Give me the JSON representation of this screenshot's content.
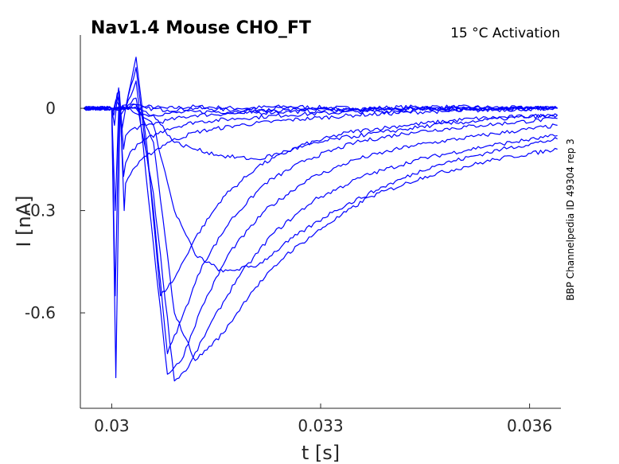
{
  "chart_data": {
    "type": "line",
    "title": "Nav1.4  Mouse  CHO_FT",
    "subtitle": "15 °C  Activation",
    "side_label": "BBP Channelpedia ID 49304 rep 3",
    "xlabel": "t [s]",
    "ylabel": "I [nA]",
    "xlim": [
      0.02955,
      0.03645
    ],
    "ylim": [
      -0.88,
      0.215
    ],
    "xticks": [
      0.03,
      0.033,
      0.036
    ],
    "xtick_labels": [
      "0.03",
      "0.033",
      "0.036"
    ],
    "yticks": [
      0,
      -0.3,
      -0.6
    ],
    "ytick_labels": [
      "0",
      "-0.3",
      "-0.6"
    ],
    "line_color": "#0000ff",
    "grid": false,
    "legend": "none",
    "series": [
      {
        "x": [
          0.0296,
          0.03,
          0.03002,
          0.03006,
          0.03012,
          0.0302,
          0.0303,
          0.0305,
          0.0308,
          0.0312,
          0.0318,
          0.0325,
          0.0335,
          0.0345,
          0.0364
        ],
        "y": [
          0,
          0,
          -0.01,
          0.025,
          0.0,
          0.01,
          0.0,
          0.005,
          0.0,
          0.005,
          0.0,
          0.005,
          0.0,
          0.005,
          0.0
        ]
      },
      {
        "x": [
          0.0296,
          0.03,
          0.03003,
          0.03008,
          0.03013,
          0.0302,
          0.0303,
          0.0305,
          0.0308,
          0.0312,
          0.0318,
          0.0325,
          0.0335,
          0.0345,
          0.0364
        ],
        "y": [
          0,
          0,
          -0.02,
          0.045,
          -0.02,
          0.0,
          0.01,
          0.0,
          -0.005,
          0.0,
          -0.005,
          0.0,
          -0.005,
          0.0,
          0.0
        ]
      },
      {
        "x": [
          0.0296,
          0.03,
          0.03004,
          0.0301,
          0.03015,
          0.0302,
          0.0303,
          0.0305,
          0.0308,
          0.0312,
          0.0318,
          0.0325,
          0.0335,
          0.0345,
          0.0364
        ],
        "y": [
          0,
          0,
          -0.05,
          0.06,
          -0.06,
          0.0,
          -0.01,
          -0.02,
          -0.015,
          -0.01,
          -0.01,
          -0.005,
          -0.005,
          0.0,
          0.0
        ]
      },
      {
        "x": [
          0.0296,
          0.03,
          0.03005,
          0.03011,
          0.03017,
          0.0302,
          0.0303,
          0.0305,
          0.0308,
          0.0312,
          0.0318,
          0.0325,
          0.0335,
          0.0345,
          0.0364
        ],
        "y": [
          0,
          0,
          -0.3,
          0.05,
          -0.12,
          -0.08,
          -0.06,
          -0.05,
          -0.035,
          -0.02,
          -0.015,
          -0.01,
          -0.005,
          0.0,
          0.0
        ]
      },
      {
        "x": [
          0.0296,
          0.03,
          0.03005,
          0.03011,
          0.03017,
          0.0302,
          0.0303,
          0.0305,
          0.0308,
          0.0312,
          0.0318,
          0.0325,
          0.0335,
          0.0345,
          0.0364
        ],
        "y": [
          0,
          0,
          -0.55,
          0.04,
          -0.2,
          -0.16,
          -0.12,
          -0.09,
          -0.06,
          -0.04,
          -0.03,
          -0.02,
          -0.01,
          -0.005,
          0.0
        ]
      },
      {
        "x": [
          0.0296,
          0.03,
          0.03006,
          0.03012,
          0.03018,
          0.0302,
          0.0303,
          0.0305,
          0.0308,
          0.0312,
          0.0318,
          0.0325,
          0.0335,
          0.0345,
          0.0364
        ],
        "y": [
          0,
          0,
          -0.79,
          0.02,
          -0.3,
          -0.22,
          -0.18,
          -0.14,
          -0.1,
          -0.07,
          -0.05,
          -0.035,
          -0.02,
          -0.01,
          0.0
        ]
      },
      {
        "x": [
          0.0296,
          0.03,
          0.0302,
          0.03035,
          0.0305,
          0.0307,
          0.0309,
          0.0312,
          0.0316,
          0.0321,
          0.0327,
          0.0334,
          0.0342,
          0.0352,
          0.0364
        ],
        "y": [
          0,
          0,
          0.0,
          0.15,
          -0.1,
          -0.55,
          -0.5,
          -0.38,
          -0.26,
          -0.17,
          -0.11,
          -0.07,
          -0.05,
          -0.03,
          -0.02
        ]
      },
      {
        "x": [
          0.0296,
          0.03,
          0.0302,
          0.03035,
          0.0306,
          0.0308,
          0.031,
          0.0313,
          0.0317,
          0.0322,
          0.0328,
          0.0335,
          0.0343,
          0.0353,
          0.0364
        ],
        "y": [
          0,
          0,
          0.0,
          0.12,
          -0.3,
          -0.72,
          -0.62,
          -0.46,
          -0.33,
          -0.22,
          -0.15,
          -0.1,
          -0.07,
          -0.05,
          -0.03
        ]
      },
      {
        "x": [
          0.0296,
          0.03,
          0.0302,
          0.03035,
          0.0306,
          0.0308,
          0.031,
          0.0313,
          0.0317,
          0.0322,
          0.0328,
          0.0335,
          0.0343,
          0.0353,
          0.0364
        ],
        "y": [
          0,
          0,
          0.0,
          0.08,
          -0.4,
          -0.78,
          -0.74,
          -0.58,
          -0.42,
          -0.3,
          -0.21,
          -0.15,
          -0.11,
          -0.08,
          -0.05
        ]
      },
      {
        "x": [
          0.0296,
          0.03,
          0.0302,
          0.03035,
          0.0306,
          0.0309,
          0.0311,
          0.0314,
          0.0318,
          0.0323,
          0.0329,
          0.0336,
          0.0344,
          0.0354,
          0.0364
        ],
        "y": [
          0,
          0,
          0.0,
          0.03,
          -0.25,
          -0.8,
          -0.76,
          -0.64,
          -0.5,
          -0.37,
          -0.27,
          -0.2,
          -0.15,
          -0.11,
          -0.08
        ]
      },
      {
        "x": [
          0.0296,
          0.03,
          0.0302,
          0.03035,
          0.0306,
          0.0309,
          0.0312,
          0.0316,
          0.032,
          0.0325,
          0.0331,
          0.0337,
          0.0345,
          0.0355,
          0.0364
        ],
        "y": [
          0,
          0,
          0.0,
          0.01,
          -0.1,
          -0.6,
          -0.74,
          -0.66,
          -0.54,
          -0.43,
          -0.34,
          -0.26,
          -0.2,
          -0.15,
          -0.12
        ]
      },
      {
        "x": [
          0.0296,
          0.03,
          0.0302,
          0.03035,
          0.0306,
          0.0309,
          0.0312,
          0.0316,
          0.0321,
          0.0326,
          0.0332,
          0.0339,
          0.0346,
          0.0356,
          0.0364
        ],
        "y": [
          0,
          0,
          0.0,
          0.0,
          -0.05,
          -0.3,
          -0.43,
          -0.48,
          -0.46,
          -0.38,
          -0.3,
          -0.23,
          -0.17,
          -0.12,
          -0.09
        ]
      },
      {
        "x": [
          0.0296,
          0.03,
          0.0302,
          0.03035,
          0.0306,
          0.0309,
          0.0312,
          0.0316,
          0.0321,
          0.0326,
          0.0332,
          0.0339,
          0.0346,
          0.0356,
          0.0364
        ],
        "y": [
          0,
          0,
          0.0,
          0.0,
          -0.02,
          -0.1,
          -0.12,
          -0.14,
          -0.15,
          -0.12,
          -0.09,
          -0.07,
          -0.05,
          -0.03,
          -0.02
        ]
      }
    ]
  }
}
